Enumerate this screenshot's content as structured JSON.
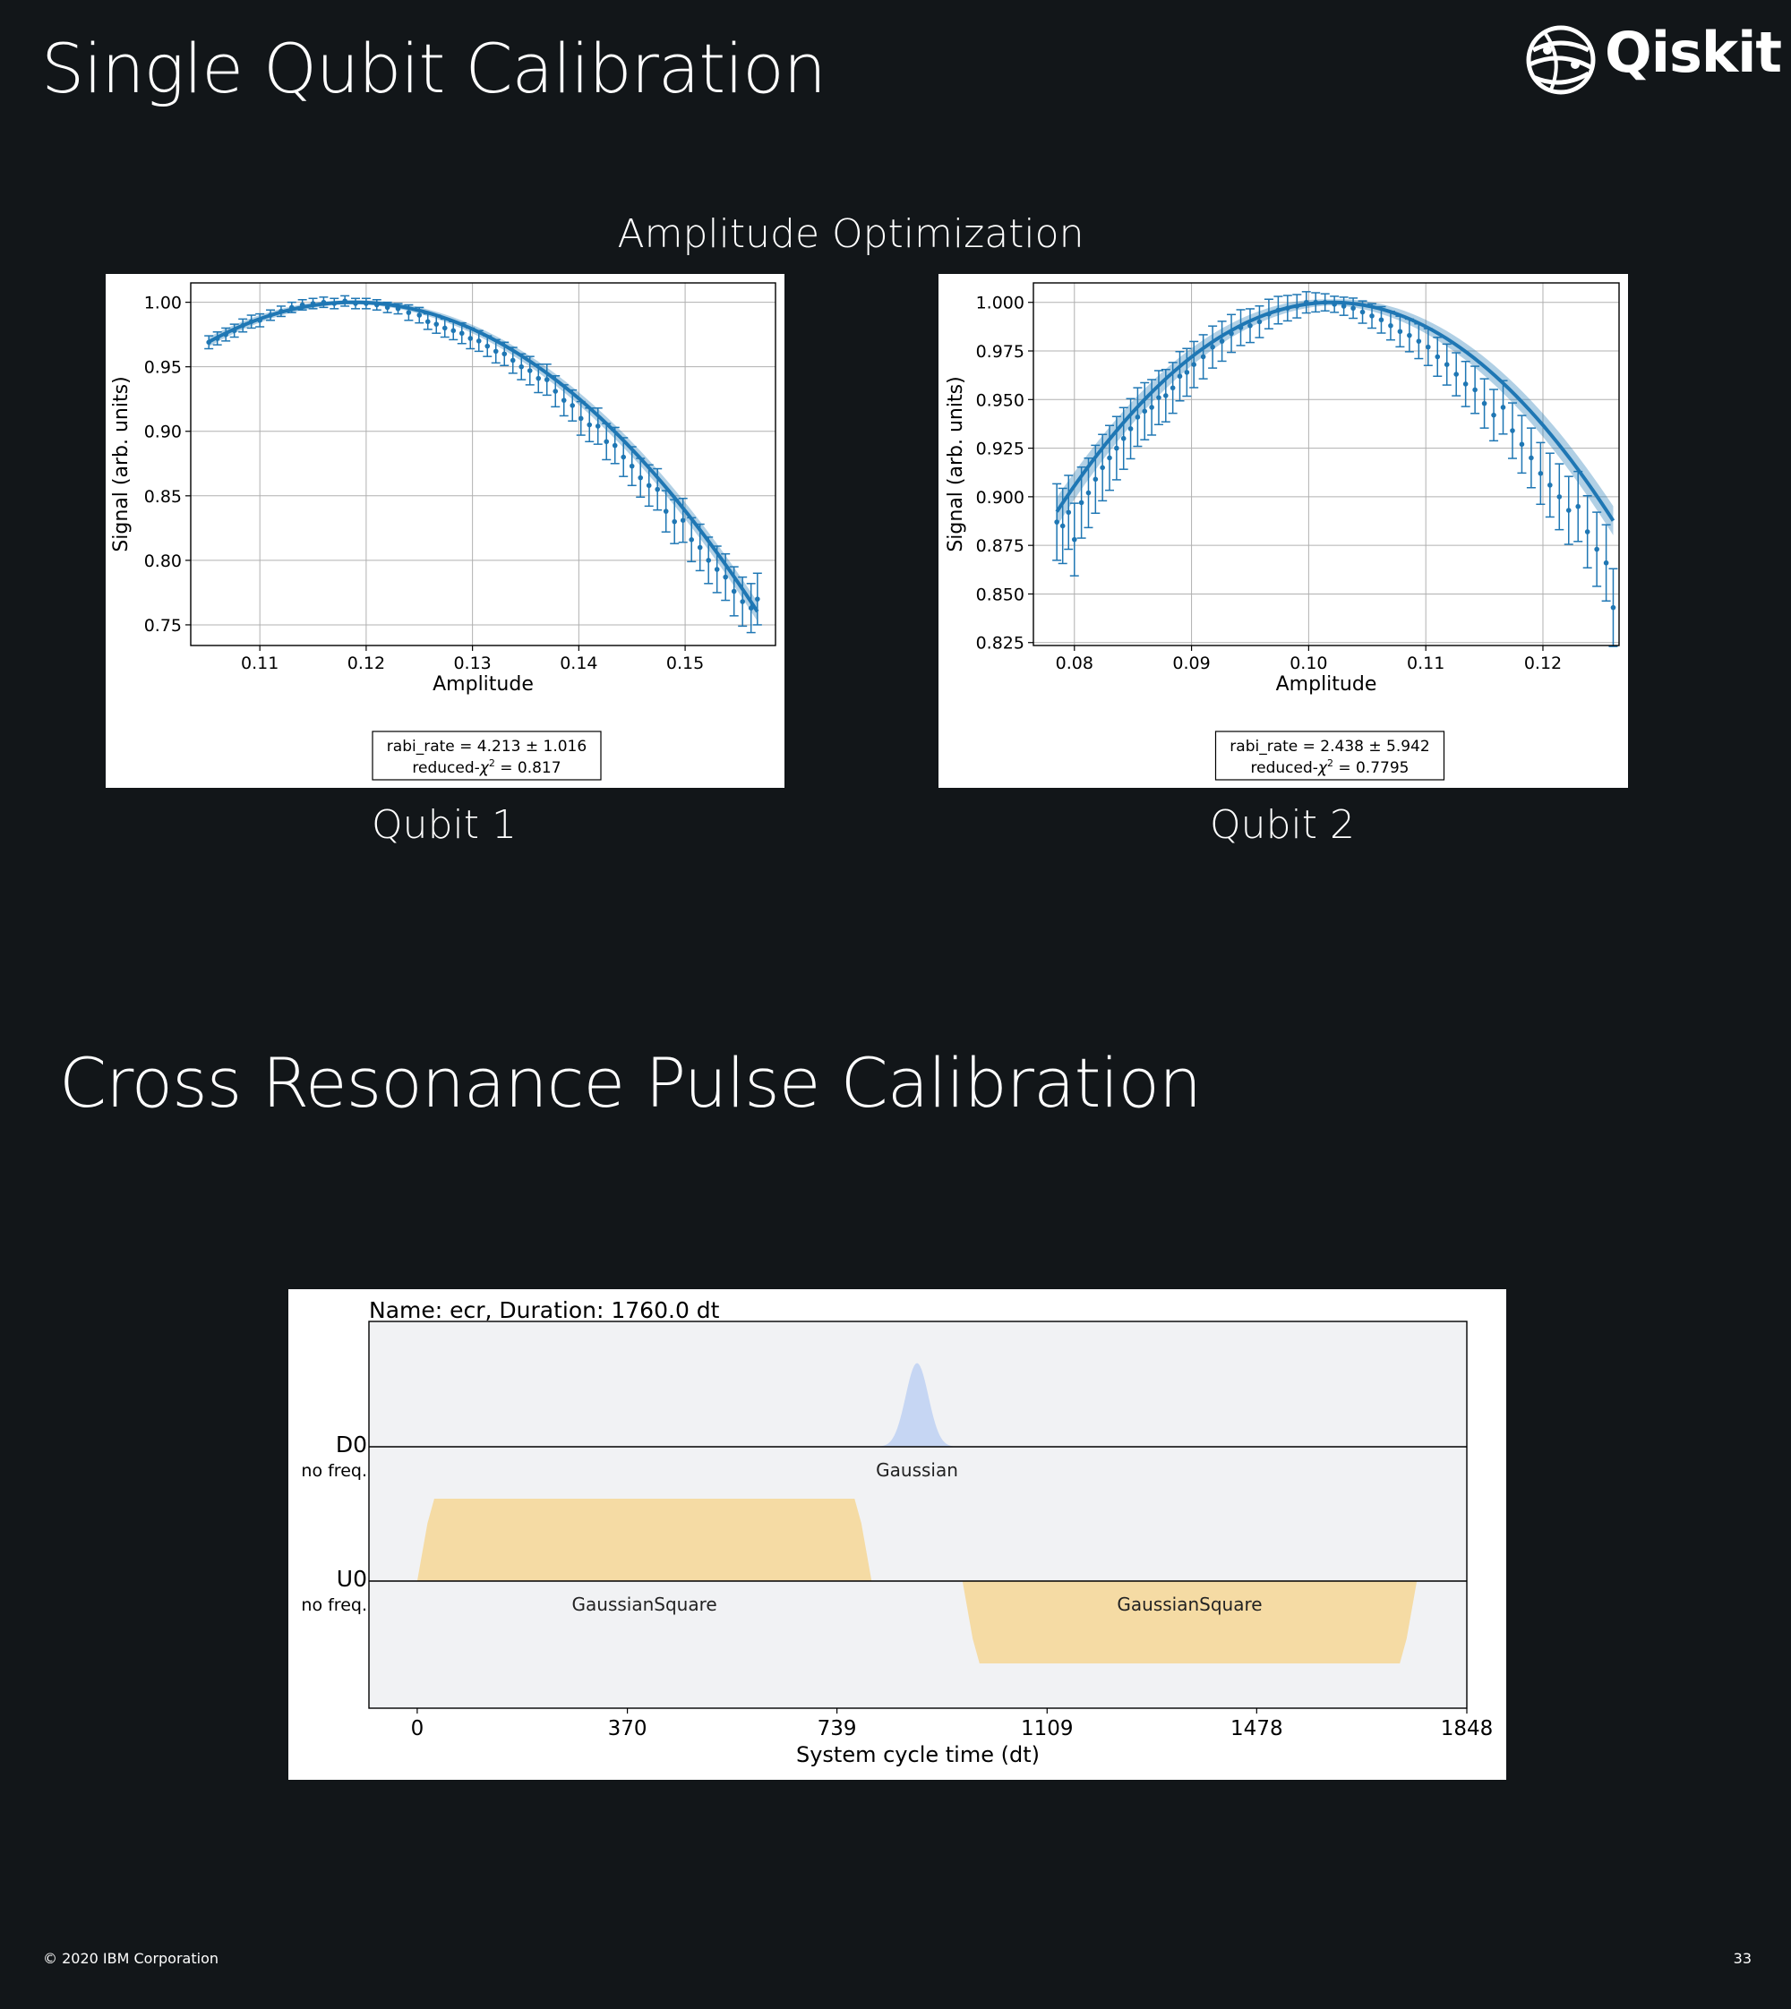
{
  "slide": {
    "title": "Single Qubit Calibration",
    "subtitle": "Amplitude Optimization",
    "section2_title": "Cross Resonance Pulse Calibration",
    "logo_text": "Qiskit",
    "logo_icon": "qiskit-sphere-icon",
    "qubit_labels": [
      "Qubit 1",
      "Qubit 2"
    ],
    "footer_left": "© 2020 IBM Corporation",
    "footer_right": "33"
  },
  "chart_data": [
    {
      "type": "scatter",
      "title": "",
      "xlabel": "Amplitude",
      "ylabel": "Signal (arb. units)",
      "xlim": [
        0.1035,
        0.1585
      ],
      "ylim": [
        0.734,
        1.015
      ],
      "xticks": [
        0.11,
        0.12,
        0.13,
        0.14,
        0.15
      ],
      "xtick_labels": [
        "0.11",
        "0.12",
        "0.13",
        "0.14",
        "0.15"
      ],
      "yticks": [
        0.75,
        0.8,
        0.85,
        0.9,
        0.95,
        1.0
      ],
      "ytick_labels": [
        "0.75",
        "0.80",
        "0.85",
        "0.90",
        "0.95",
        "1.00"
      ],
      "grid": true,
      "color": "#1f77b4",
      "fit": {
        "model": "1 - a*(x - x0)^2",
        "x0": 0.1188,
        "a": 166.0,
        "x_range": [
          0.1052,
          0.1568
        ]
      },
      "points": {
        "x": [
          0.1052,
          0.106,
          0.1068,
          0.1076,
          0.1084,
          0.1092,
          0.11,
          0.111,
          0.112,
          0.113,
          0.114,
          0.115,
          0.116,
          0.117,
          0.118,
          0.119,
          0.12,
          0.121,
          0.122,
          0.123,
          0.124,
          0.125,
          0.1258,
          0.1266,
          0.1274,
          0.1282,
          0.129,
          0.1298,
          0.1306,
          0.1314,
          0.1322,
          0.133,
          0.1338,
          0.1346,
          0.1354,
          0.1362,
          0.137,
          0.1378,
          0.1386,
          0.1394,
          0.1402,
          0.141,
          0.1418,
          0.1426,
          0.1434,
          0.1442,
          0.145,
          0.1458,
          0.1466,
          0.1474,
          0.1482,
          0.149,
          0.1498,
          0.1506,
          0.1514,
          0.1522,
          0.153,
          0.1538,
          0.1546,
          0.1554,
          0.1562,
          0.1568
        ],
        "y": [
          0.969,
          0.972,
          0.975,
          0.978,
          0.982,
          0.985,
          0.986,
          0.99,
          0.993,
          0.996,
          0.998,
          0.999,
          1.0,
          0.999,
          1.001,
          0.999,
          0.999,
          0.998,
          0.996,
          0.995,
          0.992,
          0.99,
          0.985,
          0.983,
          0.98,
          0.978,
          0.976,
          0.972,
          0.97,
          0.966,
          0.962,
          0.96,
          0.955,
          0.95,
          0.947,
          0.941,
          0.94,
          0.931,
          0.924,
          0.92,
          0.91,
          0.905,
          0.904,
          0.892,
          0.889,
          0.88,
          0.873,
          0.864,
          0.858,
          0.855,
          0.838,
          0.83,
          0.831,
          0.816,
          0.81,
          0.8,
          0.793,
          0.787,
          0.776,
          0.768,
          0.763,
          0.77
        ],
        "err": [
          0.005,
          0.005,
          0.005,
          0.005,
          0.005,
          0.005,
          0.005,
          0.004,
          0.004,
          0.004,
          0.004,
          0.004,
          0.004,
          0.004,
          0.004,
          0.004,
          0.004,
          0.004,
          0.004,
          0.004,
          0.006,
          0.006,
          0.006,
          0.007,
          0.007,
          0.007,
          0.008,
          0.008,
          0.008,
          0.008,
          0.009,
          0.009,
          0.01,
          0.01,
          0.011,
          0.011,
          0.012,
          0.012,
          0.012,
          0.012,
          0.013,
          0.013,
          0.014,
          0.014,
          0.014,
          0.015,
          0.015,
          0.015,
          0.016,
          0.016,
          0.016,
          0.017,
          0.017,
          0.017,
          0.018,
          0.018,
          0.018,
          0.018,
          0.019,
          0.019,
          0.019,
          0.02
        ]
      },
      "annotation": {
        "line1": "rabi_rate =   4.213 ±  1.016",
        "line2_prefix": "reduced-",
        "line2_symbol": "χ",
        "line2_sup": "2",
        "line2_suffix": " =  0.817"
      }
    },
    {
      "type": "scatter",
      "title": "",
      "xlabel": "Amplitude",
      "ylabel": "Signal (arb. units)",
      "xlim": [
        0.0765,
        0.1265
      ],
      "ylim": [
        0.8235,
        1.01
      ],
      "xticks": [
        0.08,
        0.09,
        0.1,
        0.11,
        0.12
      ],
      "xtick_labels": [
        "0.08",
        "0.09",
        "0.10",
        "0.11",
        "0.12"
      ],
      "yticks": [
        0.825,
        0.85,
        0.875,
        0.9,
        0.925,
        0.95,
        0.975,
        1.0
      ],
      "ytick_labels": [
        "0.825",
        "0.850",
        "0.875",
        "0.900",
        "0.925",
        "0.950",
        "0.975",
        "1.000"
      ],
      "grid": true,
      "color": "#1f77b4",
      "fit": {
        "model": "1 - a*(x - x0)^2",
        "x0": 0.102,
        "a": 195.0,
        "x_range": [
          0.0785,
          0.126
        ]
      },
      "points": {
        "x": [
          0.0785,
          0.079,
          0.0795,
          0.08,
          0.0806,
          0.0812,
          0.0818,
          0.0824,
          0.083,
          0.0836,
          0.0842,
          0.0848,
          0.0854,
          0.086,
          0.0866,
          0.0872,
          0.0878,
          0.0884,
          0.089,
          0.0896,
          0.0902,
          0.091,
          0.0918,
          0.0926,
          0.0934,
          0.0942,
          0.095,
          0.0958,
          0.0966,
          0.0974,
          0.0982,
          0.099,
          0.0998,
          0.1006,
          0.1014,
          0.1022,
          0.103,
          0.1038,
          0.1046,
          0.1054,
          0.1062,
          0.107,
          0.1078,
          0.1086,
          0.1094,
          0.1102,
          0.111,
          0.1118,
          0.1126,
          0.1134,
          0.1142,
          0.115,
          0.1158,
          0.1166,
          0.1174,
          0.1182,
          0.119,
          0.1198,
          0.1206,
          0.1214,
          0.1222,
          0.123,
          0.1238,
          0.1246,
          0.1254,
          0.126
        ],
        "y": [
          0.887,
          0.885,
          0.892,
          0.878,
          0.897,
          0.902,
          0.909,
          0.915,
          0.92,
          0.925,
          0.93,
          0.935,
          0.941,
          0.944,
          0.946,
          0.951,
          0.952,
          0.956,
          0.962,
          0.964,
          0.968,
          0.972,
          0.977,
          0.98,
          0.984,
          0.987,
          0.988,
          0.99,
          0.994,
          0.996,
          0.997,
          0.998,
          1.0,
          1.0,
          1.0,
          0.999,
          0.998,
          0.997,
          0.995,
          0.993,
          0.991,
          0.988,
          0.985,
          0.983,
          0.98,
          0.977,
          0.972,
          0.968,
          0.963,
          0.958,
          0.955,
          0.948,
          0.942,
          0.946,
          0.934,
          0.927,
          0.92,
          0.912,
          0.906,
          0.9,
          0.893,
          0.895,
          0.882,
          0.873,
          0.866,
          0.843
        ]
      },
      "annotation": {
        "line1": "rabi_rate =   2.438 ±  5.942",
        "line2_prefix": "reduced-",
        "line2_symbol": "χ",
        "line2_sup": "2",
        "line2_suffix": " =  0.7795"
      }
    },
    {
      "type": "area",
      "title": "Name: ecr, Duration: 1760.0 dt",
      "xlabel": "System cycle time (dt)",
      "xlim": [
        -85,
        1848
      ],
      "xticks": [
        0,
        370,
        739,
        1109,
        1478,
        1848
      ],
      "xtick_labels": [
        "0",
        "370",
        "739",
        "1109",
        "1478",
        "1848"
      ],
      "channels": [
        {
          "name": "D0",
          "sublabel": "no freq."
        },
        {
          "name": "U0",
          "sublabel": "no freq."
        }
      ],
      "pulses": [
        {
          "channel": "D0",
          "shape": "Gaussian",
          "label": "Gaussian",
          "start": 800,
          "end": 960,
          "amplitude": 0.64,
          "color": "#c6d6f3"
        },
        {
          "channel": "U0",
          "shape": "GaussianSquare",
          "label": "GaussianSquare",
          "start": 0,
          "end": 800,
          "rise": 30,
          "amplitude": 0.63,
          "color": "#f5dba4"
        },
        {
          "channel": "U0",
          "shape": "GaussianSquare",
          "label": "GaussianSquare",
          "start": 960,
          "end": 1760,
          "rise": 30,
          "amplitude": -0.63,
          "color": "#f5dba4"
        }
      ],
      "background": "#f1f2f4"
    }
  ]
}
